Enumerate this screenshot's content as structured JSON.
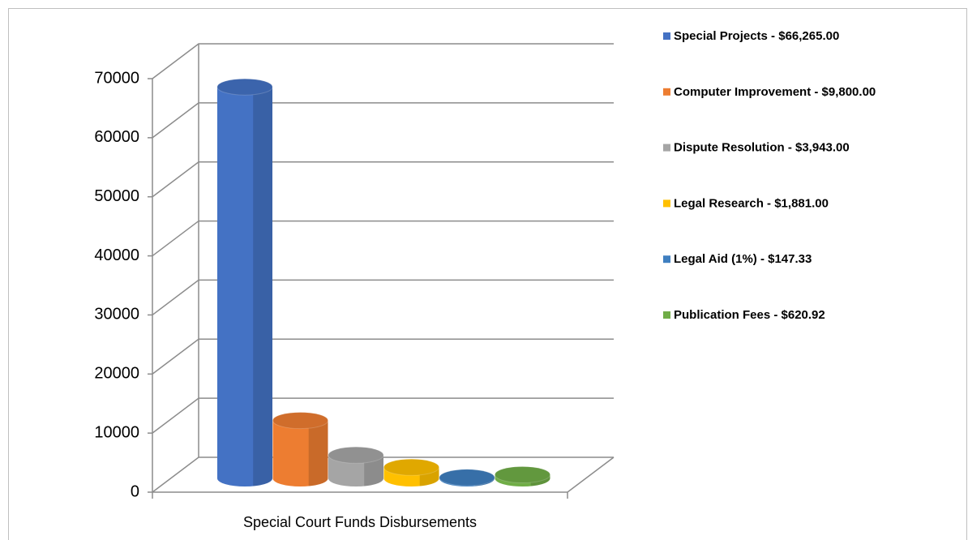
{
  "chart_data": {
    "type": "bar3d",
    "categories": [
      "Special Court Funds Disbursements"
    ],
    "series": [
      {
        "name": "Special Projects  - $66,265.00",
        "color": "#4472c4",
        "values": [
          66265
        ]
      },
      {
        "name": "Computer Improvement - $9,800.00",
        "color": "#ed7d31",
        "values": [
          9800
        ]
      },
      {
        "name": "Dispute Resolution - $3,943.00",
        "color": "#a5a5a5",
        "values": [
          3943
        ]
      },
      {
        "name": "Legal Research - $1,881.00",
        "color": "#ffc000",
        "values": [
          1881
        ]
      },
      {
        "name": "Legal Aid  (1%) - $147.33",
        "color": "#3f7fc0",
        "values": [
          147.33
        ]
      },
      {
        "name": "Publication Fees - $620.92",
        "color": "#70ad47",
        "values": [
          620.92
        ]
      }
    ],
    "ylim": [
      0,
      70000
    ],
    "yticks": [
      0,
      10000,
      20000,
      30000,
      40000,
      50000,
      60000,
      70000
    ],
    "grid": true,
    "legend": "right"
  }
}
